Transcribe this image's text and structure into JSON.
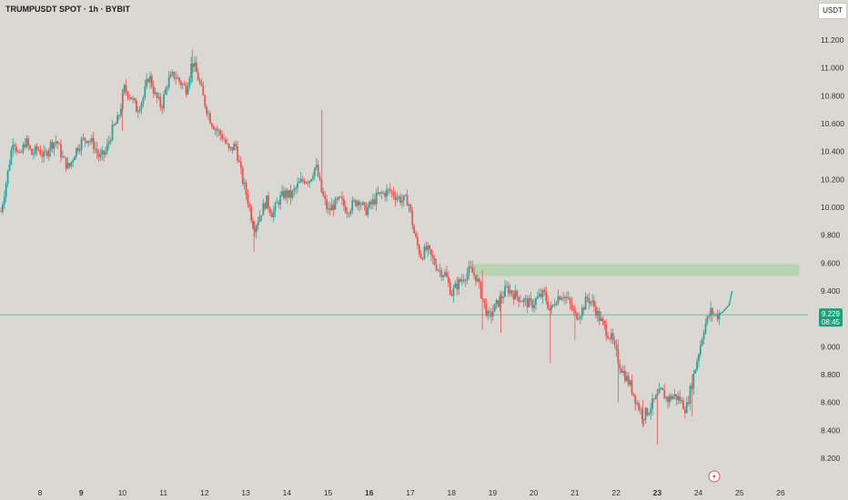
{
  "header": {
    "symbol_title": "TRUMPUSDT SPOT · 1h · BYBIT",
    "currency": "USDT"
  },
  "colors": {
    "up": "#26a69a",
    "down": "#ef5350",
    "zone": "#b7d4b0",
    "price_line": "#3aa889",
    "price_tag": "#1f9e7c"
  },
  "icons": {
    "event": "lightning-icon"
  },
  "chart_data": {
    "type": "candlestick",
    "y_ticks": [
      "8.200",
      "8.400",
      "8.600",
      "8.800",
      "9.000",
      "9.200",
      "9.400",
      "9.600",
      "9.800",
      "10.000",
      "10.200",
      "10.400",
      "10.600",
      "10.800",
      "11.000",
      "11.200"
    ],
    "ylim": [
      8.13,
      11.44
    ],
    "x_ticks": [
      {
        "label": "8",
        "day": 8,
        "bold": false
      },
      {
        "label": "9",
        "day": 9,
        "bold": true
      },
      {
        "label": "10",
        "day": 10,
        "bold": false
      },
      {
        "label": "11",
        "day": 11,
        "bold": false
      },
      {
        "label": "12",
        "day": 12,
        "bold": false
      },
      {
        "label": "13",
        "day": 13,
        "bold": false
      },
      {
        "label": "14",
        "day": 14,
        "bold": false
      },
      {
        "label": "15",
        "day": 15,
        "bold": false
      },
      {
        "label": "16",
        "day": 16,
        "bold": true
      },
      {
        "label": "17",
        "day": 17,
        "bold": false
      },
      {
        "label": "18",
        "day": 18,
        "bold": false
      },
      {
        "label": "19",
        "day": 19,
        "bold": false
      },
      {
        "label": "20",
        "day": 20,
        "bold": false
      },
      {
        "label": "21",
        "day": 21,
        "bold": false
      },
      {
        "label": "22",
        "day": 22,
        "bold": false
      },
      {
        "label": "23",
        "day": 23,
        "bold": true
      },
      {
        "label": "24",
        "day": 24,
        "bold": false
      },
      {
        "label": "25",
        "day": 25,
        "bold": false
      },
      {
        "label": "26",
        "day": 26,
        "bold": false
      }
    ],
    "current_price": "9.229",
    "countdown": "08:45",
    "zone": {
      "low": 9.52,
      "high": 9.58,
      "start_day": 18.5,
      "end_day": 26.45
    },
    "path_points": [
      [
        7.05,
        9.97
      ],
      [
        7.2,
        10.22
      ],
      [
        7.35,
        10.5
      ],
      [
        7.5,
        10.35
      ],
      [
        7.65,
        10.48
      ],
      [
        7.8,
        10.38
      ],
      [
        7.95,
        10.42
      ],
      [
        8.1,
        10.36
      ],
      [
        8.25,
        10.45
      ],
      [
        8.4,
        10.48
      ],
      [
        8.55,
        10.35
      ],
      [
        8.7,
        10.28
      ],
      [
        8.85,
        10.4
      ],
      [
        9.0,
        10.47
      ],
      [
        9.15,
        10.5
      ],
      [
        9.3,
        10.45
      ],
      [
        9.45,
        10.35
      ],
      [
        9.6,
        10.4
      ],
      [
        9.75,
        10.55
      ],
      [
        9.9,
        10.63
      ],
      [
        10.05,
        10.85
      ],
      [
        10.2,
        10.8
      ],
      [
        10.35,
        10.7
      ],
      [
        10.5,
        10.78
      ],
      [
        10.65,
        10.95
      ],
      [
        10.8,
        10.8
      ],
      [
        10.95,
        10.72
      ],
      [
        11.1,
        10.9
      ],
      [
        11.25,
        10.95
      ],
      [
        11.4,
        10.9
      ],
      [
        11.55,
        10.85
      ],
      [
        11.7,
        11.05
      ],
      [
        11.85,
        10.92
      ],
      [
        12.0,
        10.75
      ],
      [
        12.15,
        10.62
      ],
      [
        12.3,
        10.55
      ],
      [
        12.45,
        10.5
      ],
      [
        12.6,
        10.4
      ],
      [
        12.75,
        10.45
      ],
      [
        12.9,
        10.22
      ],
      [
        13.05,
        10.05
      ],
      [
        13.2,
        9.85
      ],
      [
        13.35,
        9.95
      ],
      [
        13.5,
        10.05
      ],
      [
        13.65,
        9.95
      ],
      [
        13.8,
        10.05
      ],
      [
        13.95,
        10.1
      ],
      [
        14.1,
        10.08
      ],
      [
        14.25,
        10.15
      ],
      [
        14.4,
        10.2
      ],
      [
        14.55,
        10.2
      ],
      [
        14.7,
        10.3
      ],
      [
        14.85,
        10.1
      ],
      [
        15.0,
        9.97
      ],
      [
        15.15,
        10.02
      ],
      [
        15.3,
        10.05
      ],
      [
        15.45,
        9.98
      ],
      [
        15.6,
        10.02
      ],
      [
        15.75,
        10.06
      ],
      [
        15.9,
        9.97
      ],
      [
        16.05,
        10.02
      ],
      [
        16.2,
        10.08
      ],
      [
        16.35,
        10.1
      ],
      [
        16.5,
        10.12
      ],
      [
        16.65,
        10.08
      ],
      [
        16.8,
        10.05
      ],
      [
        16.95,
        10.05
      ],
      [
        17.1,
        9.8
      ],
      [
        17.25,
        9.65
      ],
      [
        17.4,
        9.7
      ],
      [
        17.55,
        9.62
      ],
      [
        17.7,
        9.55
      ],
      [
        17.85,
        9.52
      ],
      [
        18.0,
        9.38
      ],
      [
        18.15,
        9.45
      ],
      [
        18.3,
        9.5
      ],
      [
        18.45,
        9.55
      ],
      [
        18.6,
        9.5
      ],
      [
        18.75,
        9.35
      ],
      [
        18.9,
        9.2
      ],
      [
        19.05,
        9.28
      ],
      [
        19.2,
        9.35
      ],
      [
        19.35,
        9.42
      ],
      [
        19.5,
        9.38
      ],
      [
        19.65,
        9.35
      ],
      [
        19.8,
        9.32
      ],
      [
        19.95,
        9.3
      ],
      [
        20.1,
        9.35
      ],
      [
        20.25,
        9.38
      ],
      [
        20.4,
        9.25
      ],
      [
        20.55,
        9.35
      ],
      [
        20.7,
        9.38
      ],
      [
        20.85,
        9.32
      ],
      [
        21.0,
        9.22
      ],
      [
        21.15,
        9.25
      ],
      [
        21.3,
        9.35
      ],
      [
        21.45,
        9.3
      ],
      [
        21.6,
        9.2
      ],
      [
        21.75,
        9.12
      ],
      [
        21.9,
        9.05
      ],
      [
        22.05,
        8.9
      ],
      [
        22.2,
        8.8
      ],
      [
        22.35,
        8.72
      ],
      [
        22.5,
        8.6
      ],
      [
        22.65,
        8.5
      ],
      [
        22.8,
        8.55
      ],
      [
        22.95,
        8.62
      ],
      [
        23.1,
        8.68
      ],
      [
        23.25,
        8.62
      ],
      [
        23.4,
        8.65
      ],
      [
        23.55,
        8.62
      ],
      [
        23.7,
        8.55
      ],
      [
        23.85,
        8.75
      ],
      [
        24.0,
        8.95
      ],
      [
        24.15,
        9.15
      ],
      [
        24.3,
        9.25
      ],
      [
        24.45,
        9.22
      ],
      [
        24.6,
        9.25
      ],
      [
        24.75,
        9.3
      ],
      [
        24.82,
        9.4
      ]
    ],
    "wick_spikes": [
      {
        "day": 10.0,
        "high": 10.85,
        "low": 10.55
      },
      {
        "day": 11.7,
        "high": 11.13,
        "low": 10.9
      },
      {
        "day": 13.2,
        "high": 9.9,
        "low": 9.68
      },
      {
        "day": 14.85,
        "high": 10.7,
        "low": 10.1
      },
      {
        "day": 18.75,
        "high": 9.55,
        "low": 9.12
      },
      {
        "day": 19.2,
        "high": 9.38,
        "low": 9.1
      },
      {
        "day": 20.4,
        "high": 9.3,
        "low": 8.88
      },
      {
        "day": 21.0,
        "high": 9.3,
        "low": 9.05
      },
      {
        "day": 22.05,
        "high": 9.05,
        "low": 8.6
      },
      {
        "day": 22.65,
        "high": 8.62,
        "low": 8.42
      },
      {
        "day": 23.0,
        "high": 8.7,
        "low": 8.3
      },
      {
        "day": 23.85,
        "high": 8.8,
        "low": 8.5
      }
    ]
  }
}
